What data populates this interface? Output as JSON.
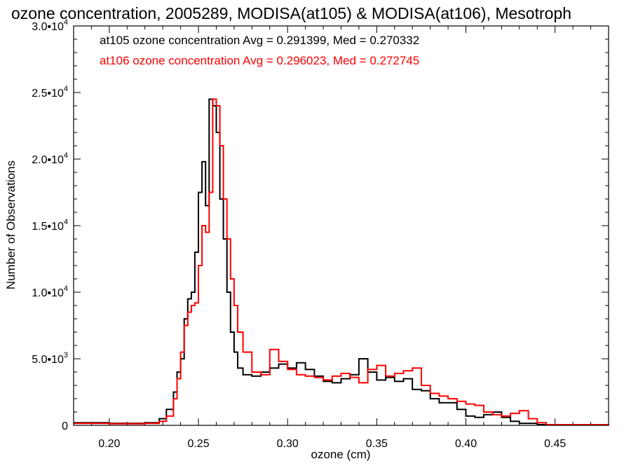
{
  "chart_data": {
    "type": "line",
    "title": "ozone concentration, 2005289, MODISA(at105) & MODISA(at106), Mesotroph",
    "xlabel": "ozone (cm)",
    "ylabel": "Number of Observations",
    "xlim": [
      0.18,
      0.48
    ],
    "ylim": [
      0,
      30000
    ],
    "grid": false,
    "x_ticks": [
      {
        "value": 0.2,
        "label": "0.20"
      },
      {
        "value": 0.25,
        "label": "0.25"
      },
      {
        "value": 0.3,
        "label": "0.30"
      },
      {
        "value": 0.35,
        "label": "0.35"
      },
      {
        "value": 0.4,
        "label": "0.40"
      },
      {
        "value": 0.45,
        "label": "0.45"
      }
    ],
    "y_ticks": [
      {
        "value": 0,
        "mant": "0",
        "exp": ""
      },
      {
        "value": 5000,
        "mant": "5.0•10",
        "exp": "3"
      },
      {
        "value": 10000,
        "mant": "1.0•10",
        "exp": "4"
      },
      {
        "value": 15000,
        "mant": "1.5•10",
        "exp": "4"
      },
      {
        "value": 20000,
        "mant": "2.0•10",
        "exp": "4"
      },
      {
        "value": 25000,
        "mant": "2.5•10",
        "exp": "4"
      },
      {
        "value": 30000,
        "mant": "3.0•10",
        "exp": "4"
      }
    ],
    "legend": [
      {
        "text": "at105 ozone concentration Avg = 0.291399, Med = 0.270332",
        "color": "#000000"
      },
      {
        "text": "at106 ozone concentration Avg = 0.296023, Med = 0.272745",
        "color": "#ff0000"
      }
    ],
    "series": [
      {
        "color": "#000000",
        "points": [
          [
            0.18,
            200
          ],
          [
            0.2,
            150
          ],
          [
            0.22,
            200
          ],
          [
            0.228,
            500
          ],
          [
            0.232,
            1200
          ],
          [
            0.236,
            2500
          ],
          [
            0.238,
            4000
          ],
          [
            0.24,
            5000
          ],
          [
            0.242,
            8000
          ],
          [
            0.244,
            9500
          ],
          [
            0.246,
            10000
          ],
          [
            0.248,
            13000
          ],
          [
            0.25,
            17500
          ],
          [
            0.252,
            19800
          ],
          [
            0.254,
            16500
          ],
          [
            0.256,
            24500
          ],
          [
            0.258,
            24000
          ],
          [
            0.26,
            22000
          ],
          [
            0.262,
            17000
          ],
          [
            0.264,
            14000
          ],
          [
            0.266,
            10000
          ],
          [
            0.268,
            7000
          ],
          [
            0.27,
            5500
          ],
          [
            0.272,
            4300
          ],
          [
            0.275,
            3800
          ],
          [
            0.28,
            3700
          ],
          [
            0.285,
            4000
          ],
          [
            0.29,
            4300
          ],
          [
            0.295,
            4600
          ],
          [
            0.3,
            4300
          ],
          [
            0.305,
            4700
          ],
          [
            0.31,
            4200
          ],
          [
            0.315,
            3700
          ],
          [
            0.32,
            3300
          ],
          [
            0.325,
            3200
          ],
          [
            0.33,
            3500
          ],
          [
            0.335,
            3800
          ],
          [
            0.34,
            5000
          ],
          [
            0.345,
            4000
          ],
          [
            0.35,
            3400
          ],
          [
            0.355,
            3600
          ],
          [
            0.36,
            3300
          ],
          [
            0.365,
            3500
          ],
          [
            0.37,
            2700
          ],
          [
            0.375,
            2600
          ],
          [
            0.38,
            2000
          ],
          [
            0.385,
            1700
          ],
          [
            0.39,
            1700
          ],
          [
            0.395,
            1200
          ],
          [
            0.4,
            700
          ],
          [
            0.405,
            600
          ],
          [
            0.41,
            800
          ],
          [
            0.415,
            1000
          ],
          [
            0.42,
            600
          ],
          [
            0.425,
            300
          ],
          [
            0.43,
            150
          ],
          [
            0.44,
            50
          ],
          [
            0.48,
            0
          ]
        ]
      },
      {
        "color": "#ff0000",
        "points": [
          [
            0.18,
            150
          ],
          [
            0.2,
            120
          ],
          [
            0.22,
            150
          ],
          [
            0.228,
            300
          ],
          [
            0.232,
            700
          ],
          [
            0.236,
            2000
          ],
          [
            0.238,
            3500
          ],
          [
            0.24,
            5500
          ],
          [
            0.242,
            7500
          ],
          [
            0.244,
            8500
          ],
          [
            0.246,
            9000
          ],
          [
            0.248,
            9200
          ],
          [
            0.25,
            12000
          ],
          [
            0.252,
            15000
          ],
          [
            0.254,
            14500
          ],
          [
            0.256,
            17500
          ],
          [
            0.258,
            24500
          ],
          [
            0.26,
            24000
          ],
          [
            0.262,
            21000
          ],
          [
            0.264,
            17000
          ],
          [
            0.266,
            14000
          ],
          [
            0.268,
            11000
          ],
          [
            0.27,
            9000
          ],
          [
            0.272,
            7000
          ],
          [
            0.275,
            5500
          ],
          [
            0.28,
            4000
          ],
          [
            0.285,
            3800
          ],
          [
            0.29,
            5700
          ],
          [
            0.295,
            4800
          ],
          [
            0.3,
            4200
          ],
          [
            0.305,
            3800
          ],
          [
            0.31,
            3700
          ],
          [
            0.315,
            3600
          ],
          [
            0.32,
            3400
          ],
          [
            0.325,
            3700
          ],
          [
            0.33,
            3900
          ],
          [
            0.335,
            3600
          ],
          [
            0.34,
            3200
          ],
          [
            0.345,
            4200
          ],
          [
            0.35,
            4500
          ],
          [
            0.355,
            3700
          ],
          [
            0.36,
            3900
          ],
          [
            0.365,
            4100
          ],
          [
            0.37,
            4300
          ],
          [
            0.375,
            3000
          ],
          [
            0.38,
            2400
          ],
          [
            0.385,
            2200
          ],
          [
            0.39,
            2000
          ],
          [
            0.395,
            1800
          ],
          [
            0.4,
            1600
          ],
          [
            0.405,
            1500
          ],
          [
            0.41,
            1000
          ],
          [
            0.415,
            800
          ],
          [
            0.42,
            700
          ],
          [
            0.425,
            900
          ],
          [
            0.43,
            1100
          ],
          [
            0.435,
            500
          ],
          [
            0.44,
            200
          ],
          [
            0.445,
            50
          ],
          [
            0.48,
            0
          ]
        ]
      }
    ]
  }
}
